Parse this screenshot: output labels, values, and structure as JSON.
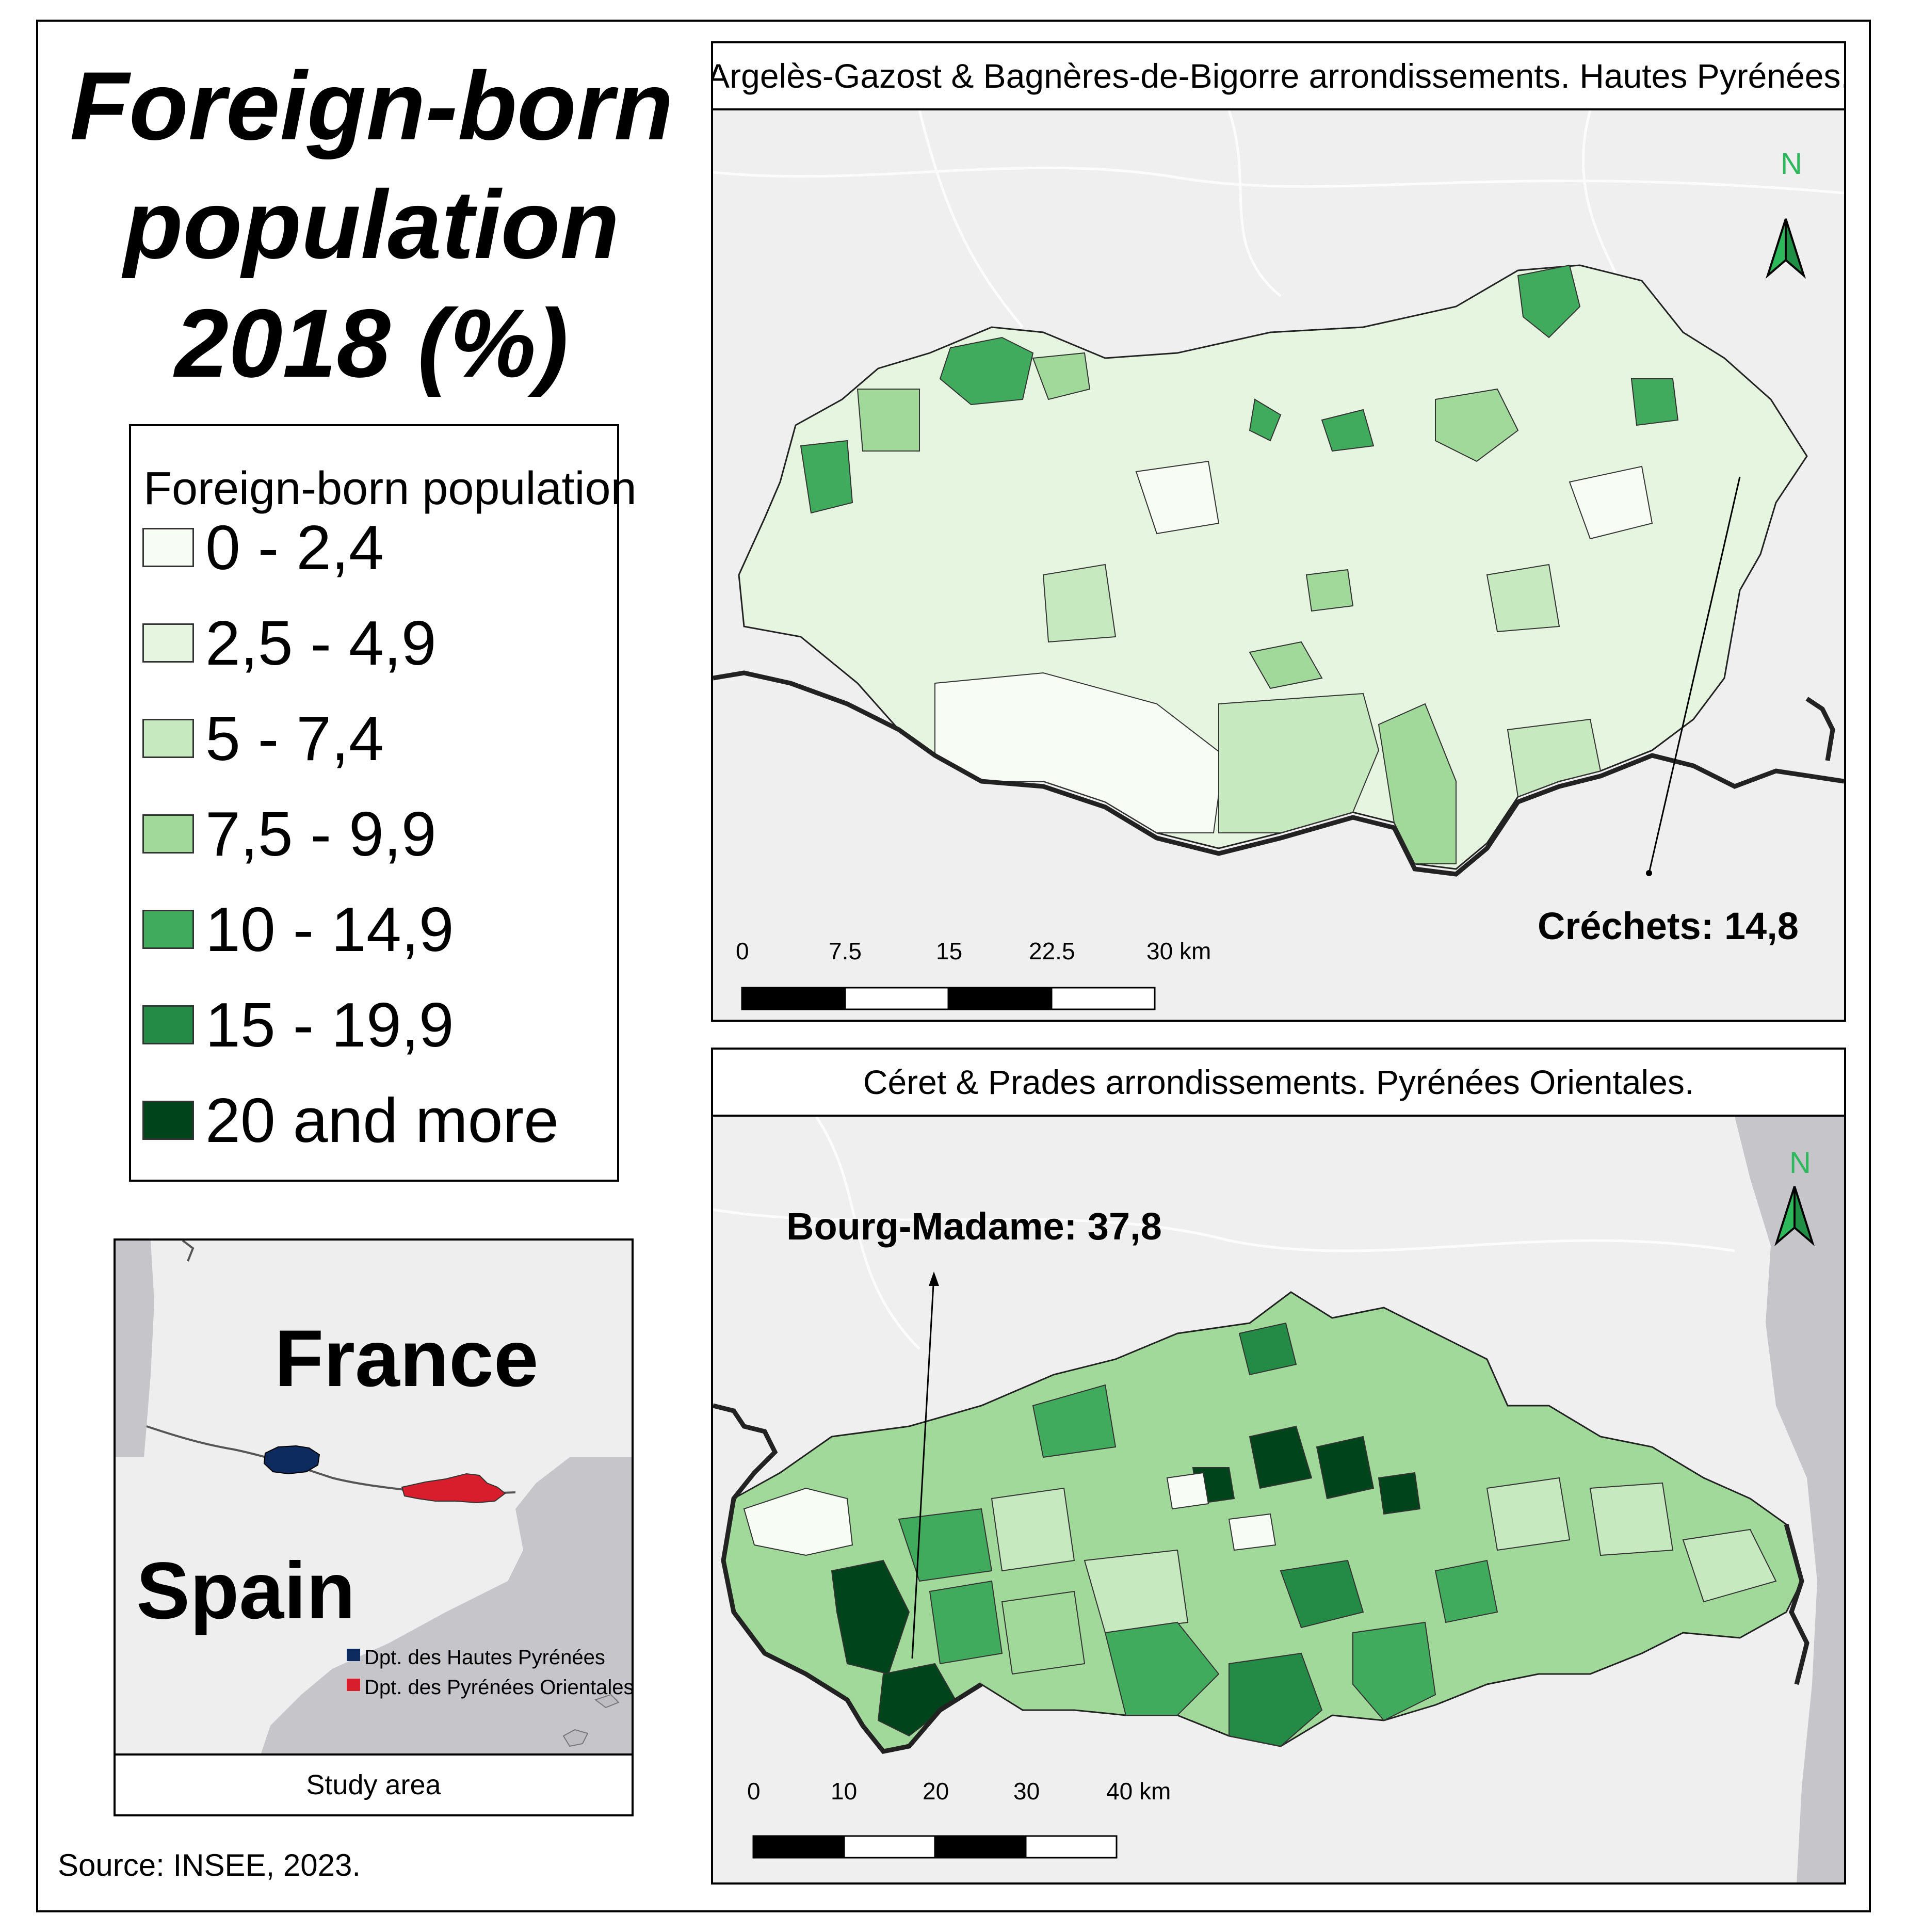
{
  "title": {
    "line1": "Foreign-born",
    "line2": "population",
    "line3": "2018 (%)"
  },
  "legend": {
    "title": "Foreign-born population",
    "classes": [
      {
        "label": "0 - 2,4",
        "color": "#f7fcf5"
      },
      {
        "label": "2,5 - 4,9",
        "color": "#e5f5e0"
      },
      {
        "label": "5 - 7,4",
        "color": "#c7e9c0"
      },
      {
        "label": "7,5 - 9,9",
        "color": "#a1d99b"
      },
      {
        "label": "10 - 14,9",
        "color": "#41ab5d"
      },
      {
        "label": "15 - 19,9",
        "color": "#238b45"
      },
      {
        "label": "20 and more",
        "color": "#00441b"
      }
    ]
  },
  "inset": {
    "country_north": "France",
    "country_south": "Spain",
    "key_hautes": "Dpt. des Hautes Pyrénées",
    "key_orientales": "Dpt. des Pyrénées Orientales",
    "color_hautes": "#0d2b5e",
    "color_orientales": "#d81e2c",
    "caption": "Study area"
  },
  "source": "Source: INSEE, 2023.",
  "panel_top": {
    "header": "Argelès-Gazost & Bagnères-de-Bigorre arrondissements. Hautes Pyrénées.",
    "callout": "Créchets: 14,8",
    "north_label": "N",
    "scale": [
      "0",
      "7.5",
      "15",
      "22.5",
      "30 km"
    ]
  },
  "panel_bottom": {
    "header": "Céret & Prades arrondissements. Pyrénées Orientales.",
    "callout": "Bourg-Madame: 37,8",
    "north_label": "N",
    "scale": [
      "0",
      "10",
      "20",
      "30",
      "40 km"
    ]
  }
}
